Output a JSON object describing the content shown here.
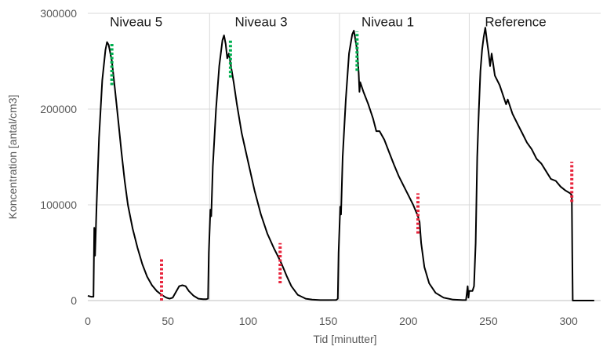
{
  "chart_data": {
    "type": "line",
    "title": "",
    "xlabel": "Tid [minutter]",
    "ylabel": "Koncentration [antal/cm3]",
    "xlim": [
      0,
      320
    ],
    "ylim": [
      0,
      300000
    ],
    "xticks": [
      0,
      50,
      100,
      150,
      200,
      250,
      300
    ],
    "yticks": [
      0,
      100000,
      200000,
      300000
    ],
    "grid": true,
    "annotations": [
      {
        "text": "Niveau 5",
        "x": 2,
        "y": 290000
      },
      {
        "text": "Niveau 3",
        "x": 80,
        "y": 290000
      },
      {
        "text": "Niveau 1",
        "x": 159,
        "y": 290000
      },
      {
        "text": "Reference",
        "x": 236,
        "y": 290000
      }
    ],
    "section_dividers": [
      76,
      157,
      238
    ],
    "markers": [
      {
        "type": "green-dotted",
        "x": 15,
        "y_range": [
          225000,
          268000
        ],
        "color": "#00b050"
      },
      {
        "type": "red-dotted",
        "x": 46,
        "y_range": [
          0,
          45000
        ],
        "color": "#e8243c"
      },
      {
        "type": "green-dotted",
        "x": 89,
        "y_range": [
          233000,
          272000
        ],
        "color": "#00b050"
      },
      {
        "type": "red-dotted",
        "x": 120,
        "y_range": [
          18000,
          60000
        ],
        "color": "#e8243c"
      },
      {
        "type": "green-dotted",
        "x": 168,
        "y_range": [
          240000,
          281000
        ],
        "color": "#00b050"
      },
      {
        "type": "red-dotted",
        "x": 206,
        "y_range": [
          70000,
          112000
        ],
        "color": "#e8243c"
      },
      {
        "type": "red-dotted",
        "x": 302,
        "y_range": [
          103000,
          145000
        ],
        "color": "#e8243c"
      }
    ],
    "series": [
      {
        "color": "#000000",
        "points": [
          [
            0,
            5000
          ],
          [
            2,
            4000
          ],
          [
            3.5,
            4000
          ],
          [
            4,
            76000
          ],
          [
            4.5,
            47000
          ],
          [
            5.5,
            100000
          ],
          [
            7,
            170000
          ],
          [
            9,
            230000
          ],
          [
            11,
            262000
          ],
          [
            12,
            270000
          ],
          [
            13,
            267000
          ],
          [
            15,
            250000
          ],
          [
            17,
            220000
          ],
          [
            19,
            188000
          ],
          [
            21,
            155000
          ],
          [
            23,
            125000
          ],
          [
            25,
            100000
          ],
          [
            28,
            75000
          ],
          [
            31,
            55000
          ],
          [
            34,
            38000
          ],
          [
            37,
            25000
          ],
          [
            40,
            16000
          ],
          [
            43,
            10000
          ],
          [
            46,
            6000
          ],
          [
            49,
            3000
          ],
          [
            51,
            2000
          ],
          [
            53,
            3000
          ],
          [
            55,
            9000
          ],
          [
            57,
            15000
          ],
          [
            59,
            16000
          ],
          [
            61,
            15000
          ],
          [
            63,
            10000
          ],
          [
            66,
            5000
          ],
          [
            69,
            2000
          ],
          [
            72,
            1500
          ],
          [
            74,
            1500
          ],
          [
            75,
            2000
          ],
          [
            75.5,
            50000
          ],
          [
            76.5,
            95000
          ],
          [
            77,
            88000
          ],
          [
            78,
            140000
          ],
          [
            80,
            200000
          ],
          [
            82,
            245000
          ],
          [
            84,
            272000
          ],
          [
            85,
            277000
          ],
          [
            86,
            268000
          ],
          [
            87,
            253000
          ],
          [
            88,
            258000
          ],
          [
            89,
            248000
          ],
          [
            91,
            228000
          ],
          [
            93,
            205000
          ],
          [
            96,
            175000
          ],
          [
            100,
            145000
          ],
          [
            104,
            115000
          ],
          [
            108,
            90000
          ],
          [
            112,
            70000
          ],
          [
            116,
            55000
          ],
          [
            119,
            45000
          ],
          [
            121,
            38000
          ],
          [
            123,
            30000
          ],
          [
            124,
            26000
          ],
          [
            127,
            15000
          ],
          [
            131,
            6000
          ],
          [
            136,
            2000
          ],
          [
            140,
            1000
          ],
          [
            145,
            500
          ],
          [
            150,
            500
          ],
          [
            155,
            600
          ],
          [
            156,
            2000
          ],
          [
            156.5,
            50000
          ],
          [
            157.5,
            98000
          ],
          [
            158,
            90000
          ],
          [
            159,
            150000
          ],
          [
            161,
            210000
          ],
          [
            163,
            258000
          ],
          [
            165,
            278000
          ],
          [
            166,
            282000
          ],
          [
            167,
            272000
          ],
          [
            168,
            262000
          ],
          [
            169,
            238000
          ],
          [
            169.5,
            218000
          ],
          [
            170,
            228000
          ],
          [
            172,
            218000
          ],
          [
            175,
            205000
          ],
          [
            178,
            190000
          ],
          [
            180,
            177000
          ],
          [
            182,
            177000
          ],
          [
            185,
            168000
          ],
          [
            188,
            155000
          ],
          [
            191,
            142000
          ],
          [
            194,
            130000
          ],
          [
            197,
            120000
          ],
          [
            200,
            110000
          ],
          [
            203,
            100000
          ],
          [
            205,
            92000
          ],
          [
            206,
            88000
          ],
          [
            207,
            82000
          ],
          [
            208,
            60000
          ],
          [
            210,
            35000
          ],
          [
            213,
            18000
          ],
          [
            217,
            8000
          ],
          [
            222,
            3000
          ],
          [
            228,
            1000
          ],
          [
            234,
            500
          ],
          [
            236,
            500
          ],
          [
            237,
            15000
          ],
          [
            237.5,
            3000
          ],
          [
            238,
            10000
          ],
          [
            240,
            10000
          ],
          [
            241,
            15000
          ],
          [
            242,
            60000
          ],
          [
            243,
            150000
          ],
          [
            244,
            200000
          ],
          [
            245,
            240000
          ],
          [
            246,
            262000
          ],
          [
            247,
            275000
          ],
          [
            248,
            285000
          ],
          [
            249,
            272000
          ],
          [
            250,
            260000
          ],
          [
            251,
            245000
          ],
          [
            252,
            258000
          ],
          [
            254,
            235000
          ],
          [
            257,
            225000
          ],
          [
            259,
            215000
          ],
          [
            261,
            205000
          ],
          [
            262,
            210000
          ],
          [
            265,
            195000
          ],
          [
            268,
            185000
          ],
          [
            271,
            175000
          ],
          [
            274,
            165000
          ],
          [
            277,
            158000
          ],
          [
            280,
            148000
          ],
          [
            283,
            143000
          ],
          [
            286,
            135000
          ],
          [
            289,
            127000
          ],
          [
            292,
            125000
          ],
          [
            295,
            119000
          ],
          [
            298,
            115000
          ],
          [
            301,
            112000
          ],
          [
            302,
            110000
          ],
          [
            302.3,
            50000
          ],
          [
            302.6,
            0
          ],
          [
            310,
            0
          ],
          [
            316,
            0
          ]
        ]
      }
    ]
  }
}
